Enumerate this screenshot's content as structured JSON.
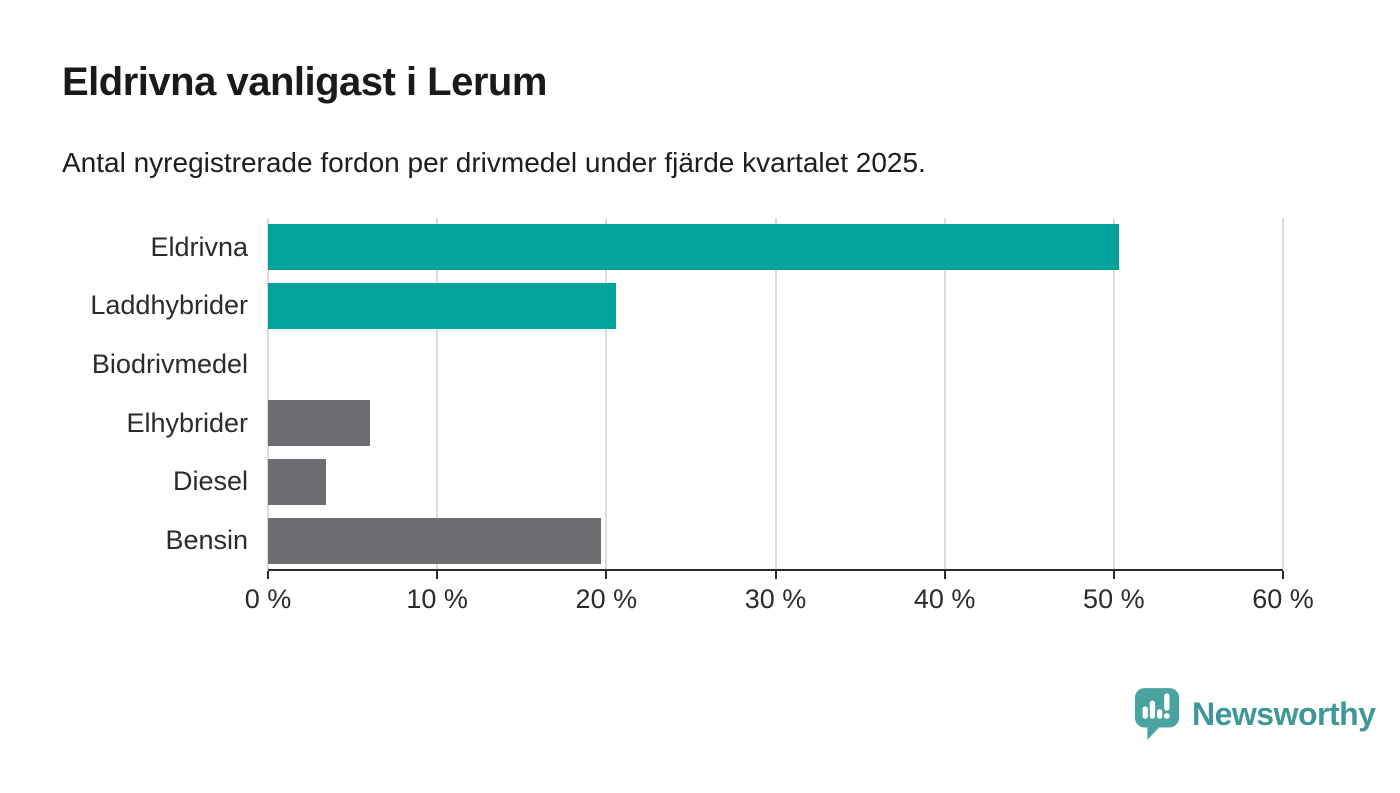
{
  "header": {
    "title": "Eldrivna vanligast i Lerum",
    "subtitle": "Antal nyregistrerade fordon per drivmedel under fjärde kvartalet 2025."
  },
  "chart_data": {
    "type": "bar",
    "orientation": "horizontal",
    "title": "Eldrivna vanligast i Lerum",
    "subtitle": "Antal nyregistrerade fordon per drivmedel under fjärde kvartalet 2025.",
    "categories": [
      "Eldrivna",
      "Laddhybrider",
      "Biodrivmedel",
      "Elhybrider",
      "Diesel",
      "Bensin"
    ],
    "values": [
      50.3,
      20.6,
      0,
      6.0,
      3.4,
      19.7
    ],
    "unit": "%",
    "bar_colors": [
      "#00a39a",
      "#00a39a",
      "#6d6d72",
      "#6d6d72",
      "#6d6d72",
      "#6d6d72"
    ],
    "xlim": [
      0,
      60
    ],
    "x_tick_values": [
      0,
      10,
      20,
      30,
      40,
      50,
      60
    ],
    "x_tick_labels": [
      "0 %",
      "10 %",
      "20 %",
      "30 %",
      "40 %",
      "50 %",
      "60 %"
    ],
    "grid": "vertical",
    "legend": "none"
  },
  "footer": {
    "brand": "Newsworthy"
  },
  "colors": {
    "accent_teal": "#00a39a",
    "neutral_gray": "#6d6d72",
    "gridline": "#dcdcdc",
    "axis": "#2b2b2b",
    "text": "#1a1a1a",
    "brand_teal": "#3f9897",
    "brand_icon_fill": "#4ba3a1",
    "background": "#ffffff"
  },
  "icons": {
    "brand_logo": "bar-chart-speech-bubble-icon"
  }
}
